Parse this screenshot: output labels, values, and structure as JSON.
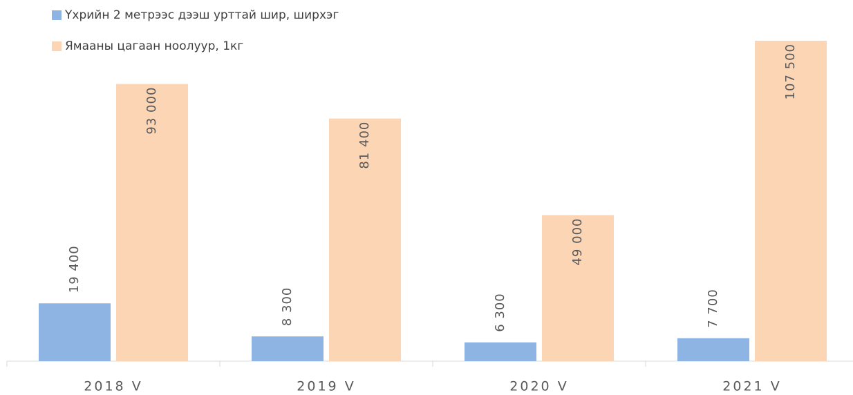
{
  "chart_data": {
    "type": "bar",
    "categories": [
      "2018 V",
      "2019 V",
      "2020 V",
      "2021 V"
    ],
    "series": [
      {
        "name": "Үхрийн 2 метрээс дээш урттай шир, ширхэг",
        "color": "#8eb4e3",
        "values": [
          19400,
          8300,
          6300,
          7700
        ],
        "value_labels": [
          "19 400",
          "8 300",
          "6 300",
          "7 700"
        ]
      },
      {
        "name": "Ямааны цагаан ноолуур, 1кг",
        "color": "#fcd5b5",
        "values": [
          93000,
          81400,
          49000,
          107500
        ],
        "value_labels": [
          "93 000",
          "81 400",
          "49 000",
          "107 500"
        ]
      }
    ]
  }
}
